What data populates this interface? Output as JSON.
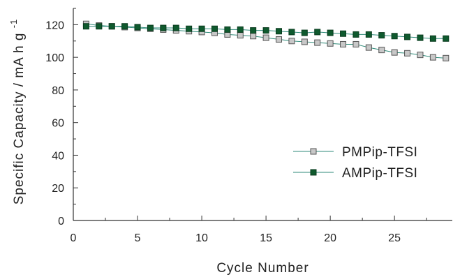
{
  "chart_data": {
    "type": "line",
    "xlabel": "Cycle Number",
    "ylabel": "Specific Capacity / mA h g",
    "ylabel_sup": "-1",
    "xlim": [
      0,
      29.5
    ],
    "ylim": [
      0,
      130
    ],
    "xticks": [
      0,
      5,
      10,
      15,
      20,
      25
    ],
    "yticks": [
      0,
      20,
      40,
      60,
      80,
      100,
      120
    ],
    "grid": false,
    "legend_position": "center-right",
    "x": [
      1,
      2,
      3,
      4,
      5,
      6,
      7,
      8,
      9,
      10,
      11,
      12,
      13,
      14,
      15,
      16,
      17,
      18,
      19,
      20,
      21,
      22,
      23,
      24,
      25,
      26,
      27,
      28,
      29
    ],
    "series": [
      {
        "name": "PMPip-TFSI",
        "marker": "square",
        "fill": "#c8c8c8",
        "stroke": "#555555",
        "line_color": "#2e8a78",
        "values": [
          120.5,
          119.5,
          119,
          118.5,
          118,
          117.5,
          117,
          116.5,
          116,
          115.5,
          115,
          114,
          113.5,
          113,
          112,
          111,
          110,
          109.5,
          109,
          108.5,
          108,
          108,
          106,
          104.5,
          103,
          102.5,
          101.5,
          100,
          99.5
        ]
      },
      {
        "name": "AMPip-TFSI",
        "marker": "square",
        "fill": "#0f5a2e",
        "stroke": "#0a3a1e",
        "line_color": "#2e8a78",
        "values": [
          119,
          119,
          119,
          119,
          118.5,
          118,
          118,
          118,
          117.5,
          117.5,
          117.5,
          117,
          117,
          116.5,
          116.5,
          116,
          115.5,
          115,
          115.5,
          115,
          114.5,
          114,
          114,
          113.5,
          113,
          112.5,
          112,
          111.5,
          111.5
        ]
      }
    ]
  }
}
